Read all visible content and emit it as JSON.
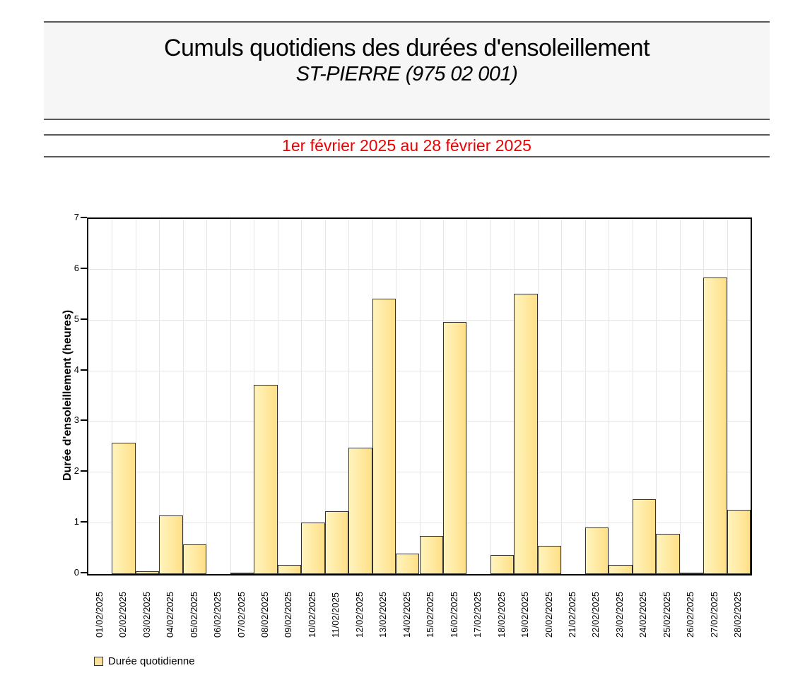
{
  "header": {
    "title": "Cumuls quotidiens des durées d'ensoleillement",
    "subtitle": "ST-PIERRE (975 02 001)",
    "period": "1er février 2025 au 28 février 2025",
    "period_color": "#ee0000"
  },
  "legend": {
    "label": "Durée quotidienne",
    "swatch_color": "#fbdf9d"
  },
  "chart_data": {
    "type": "bar",
    "title": "Cumuls quotidiens des durées d'ensoleillement",
    "subtitle": "ST-PIERRE (975 02 001)",
    "series_name": "Durée quotidienne",
    "categories": [
      "01/02/2025",
      "02/02/2025",
      "03/02/2025",
      "04/02/2025",
      "05/02/2025",
      "06/02/2025",
      "07/02/2025",
      "08/02/2025",
      "09/02/2025",
      "10/02/2025",
      "11/02/2025",
      "12/02/2025",
      "13/02/2025",
      "14/02/2025",
      "15/02/2025",
      "16/02/2025",
      "17/02/2025",
      "18/02/2025",
      "19/02/2025",
      "20/02/2025",
      "21/02/2025",
      "22/02/2025",
      "23/02/2025",
      "24/02/2025",
      "25/02/2025",
      "26/02/2025",
      "27/02/2025",
      "28/02/2025"
    ],
    "values": [
      0,
      2.59,
      0.06,
      1.15,
      0.58,
      0,
      0.02,
      3.73,
      0.18,
      1.01,
      1.24,
      2.49,
      5.43,
      0.4,
      0.75,
      4.97,
      0,
      0.38,
      5.52,
      0.56,
      0,
      0.92,
      0.18,
      1.48,
      0.79,
      0.02,
      5.85,
      1.26
    ],
    "xlabel": "",
    "ylabel": "Durée d'ensoleillement (heures)",
    "ylim": [
      0,
      7
    ],
    "yticks": [
      0,
      1,
      2,
      3,
      4,
      5,
      6,
      7
    ],
    "grid": true,
    "legend_position": "bottom-left",
    "bar_color_start": "#fff4bd",
    "bar_color_end": "#ffdf87",
    "bar_border_color": "#333333"
  }
}
